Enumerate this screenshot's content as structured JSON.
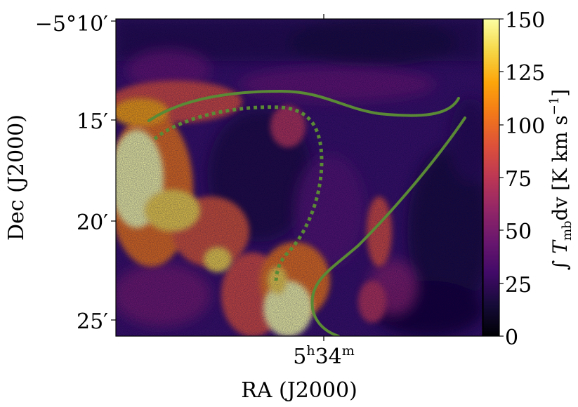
{
  "map": {
    "type": "intensity-map",
    "colormap": "inferno",
    "x_axis": {
      "label": "RA (J2000)",
      "ticks": [
        {
          "h": "5",
          "h_unit": "h",
          "m": "34",
          "m_unit": "m"
        }
      ]
    },
    "y_axis": {
      "label": "Dec (J2000)",
      "ticks": [
        "−5°10′",
        "15′",
        "20′",
        "25′"
      ]
    },
    "colorbar": {
      "label_prefix": "∫",
      "label_T": "T",
      "label_sub": "mb",
      "label_dv": "dv [K km s",
      "label_exp": "−1",
      "label_close": "]",
      "range": [
        0,
        150
      ],
      "ticks": [
        "0",
        "25",
        "50",
        "75",
        "100",
        "125",
        "150"
      ]
    },
    "overlay_color": "#5a8a35",
    "overlays": [
      {
        "name": "northern-filament",
        "style": "solid"
      },
      {
        "name": "eastern-filament",
        "style": "solid"
      },
      {
        "name": "cavity-rim",
        "style": "dotted"
      }
    ]
  }
}
